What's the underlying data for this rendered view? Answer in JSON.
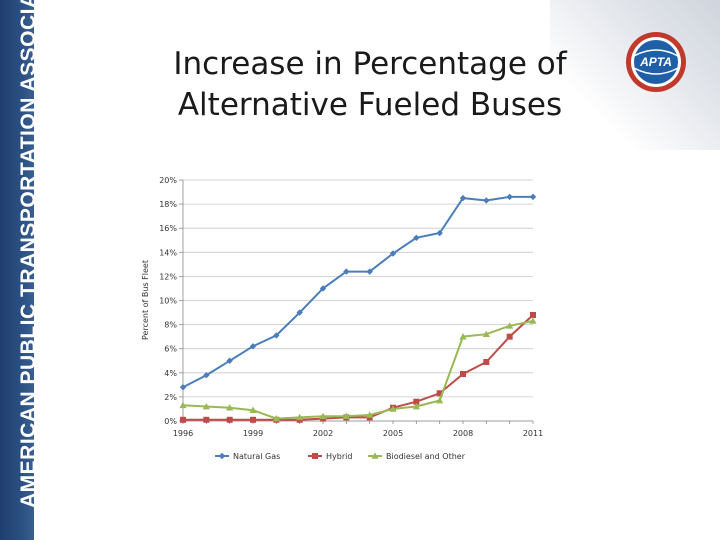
{
  "sidebar": {
    "text": "AMERICAN PUBLIC TRANSPORTATION ASSOCIATION"
  },
  "logo": {
    "text": "APTA"
  },
  "colors": {
    "band": "#24477a",
    "natural_gas": "#4a7ebb",
    "hybrid": "#be4b48",
    "biodiesel": "#98b954"
  },
  "chart_data": {
    "type": "line",
    "title": "Increase in Percentage of Alternative Fueled Buses",
    "title_lines": [
      "Increase in Percentage of",
      "Alternative Fueled Buses"
    ],
    "xlabel": "",
    "ylabel": "Percent of Bus Fleet",
    "x": [
      1996,
      1997,
      1998,
      1999,
      2000,
      2001,
      2002,
      2003,
      2004,
      2005,
      2006,
      2007,
      2008,
      2009,
      2010,
      2011
    ],
    "xticks": [
      1996,
      1999,
      2002,
      2005,
      2008,
      2011
    ],
    "xlim": [
      1996,
      2011
    ],
    "ylim": [
      0,
      20
    ],
    "yticks": [
      0,
      2,
      4,
      6,
      8,
      10,
      12,
      14,
      16,
      18,
      20
    ],
    "ytick_labels": [
      "0%",
      "2%",
      "4%",
      "6%",
      "8%",
      "10%",
      "12%",
      "14%",
      "16%",
      "18%",
      "20%"
    ],
    "grid": true,
    "legend": "bottom",
    "series": [
      {
        "name": "Natural Gas",
        "marker": "diamond",
        "values": [
          2.8,
          3.8,
          5.0,
          6.2,
          7.1,
          9.0,
          11.0,
          12.4,
          12.4,
          13.9,
          15.2,
          15.6,
          18.5,
          18.3,
          18.6,
          18.6
        ]
      },
      {
        "name": "Hybrid",
        "marker": "square",
        "values": [
          0.1,
          0.1,
          0.1,
          0.1,
          0.1,
          0.1,
          0.2,
          0.3,
          0.3,
          1.1,
          1.6,
          2.3,
          3.9,
          4.9,
          7.0,
          8.8
        ]
      },
      {
        "name": "Biodiesel and Other",
        "marker": "triangle",
        "values": [
          1.3,
          1.2,
          1.1,
          0.9,
          0.2,
          0.3,
          0.4,
          0.4,
          0.5,
          1.0,
          1.2,
          1.7,
          7.0,
          7.2,
          7.9,
          8.3
        ]
      }
    ]
  }
}
